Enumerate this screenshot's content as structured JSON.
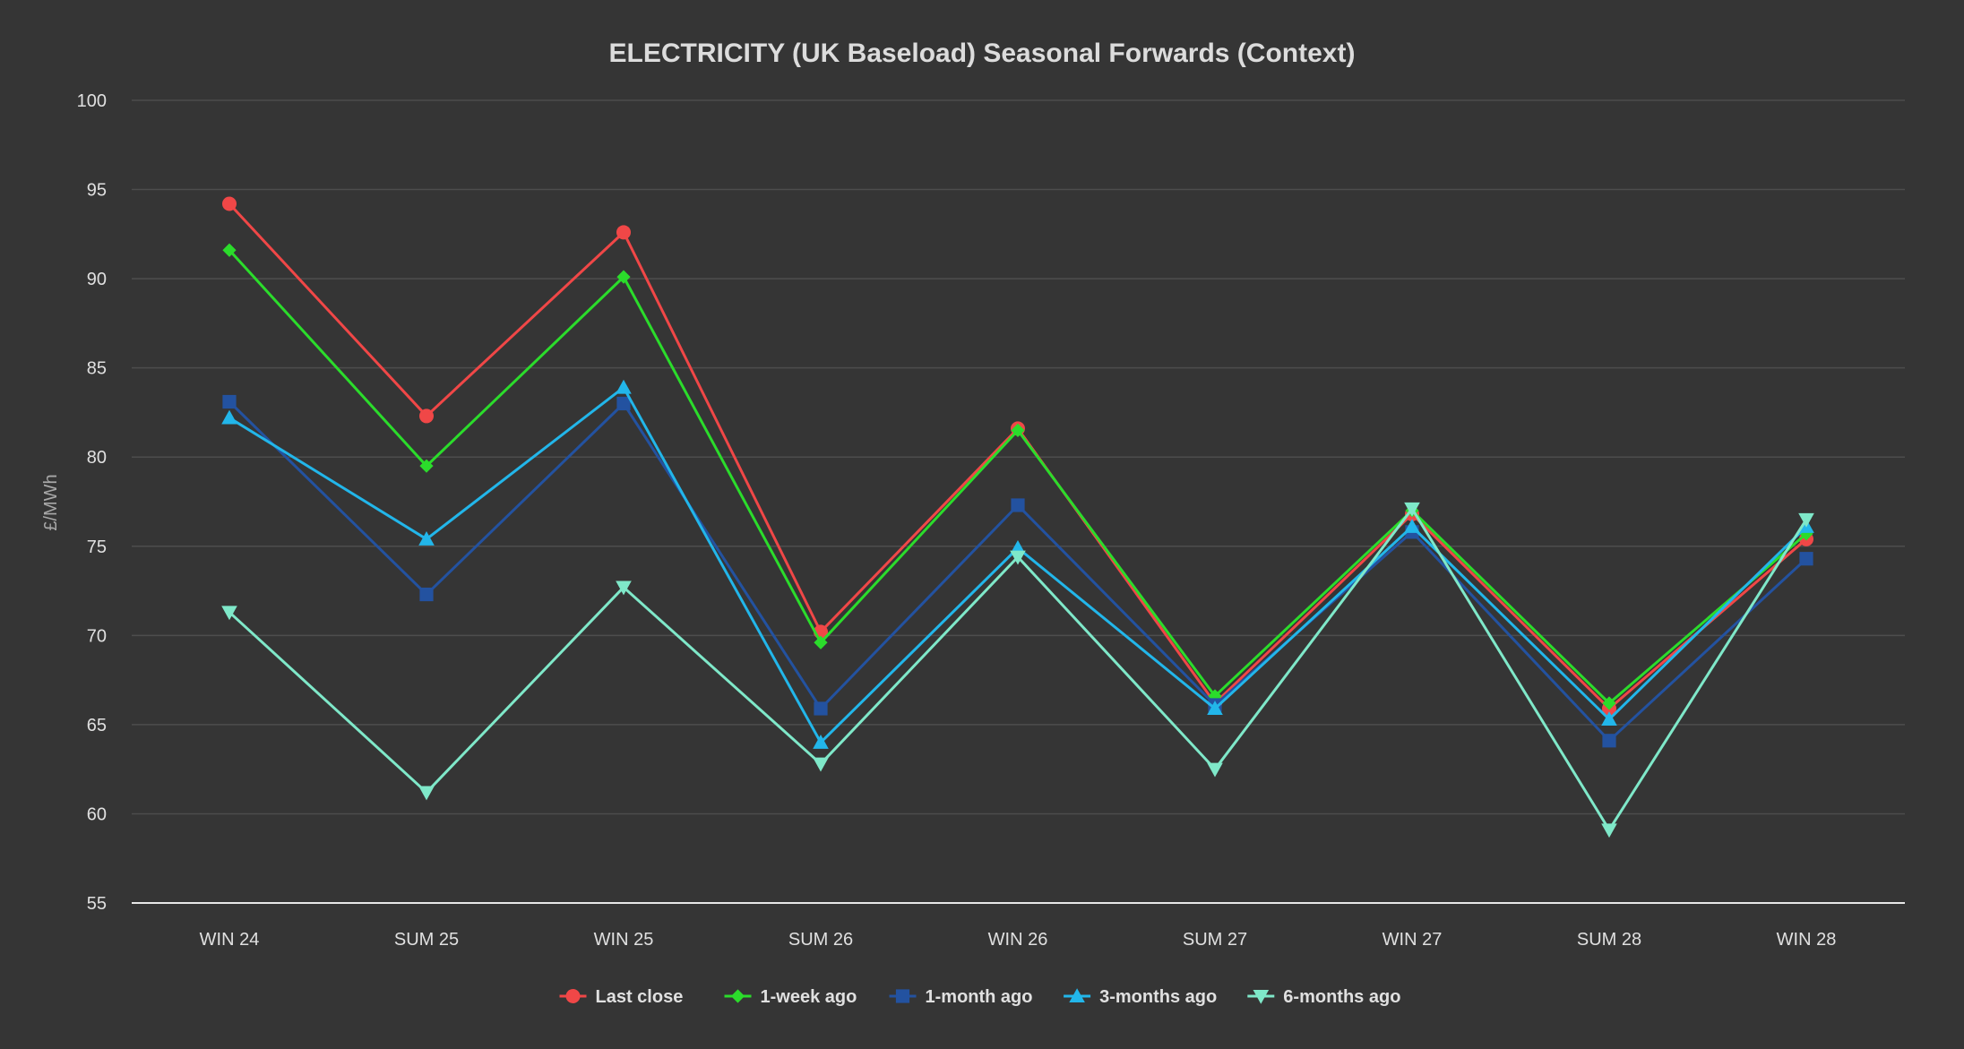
{
  "chart_data": {
    "type": "line",
    "title": "ELECTRICITY (UK Baseload) Seasonal Forwards (Context)",
    "xlabel": "",
    "ylabel": "£/MWh",
    "ylim": [
      55,
      100
    ],
    "y_ticks": [
      55,
      60,
      65,
      70,
      75,
      80,
      85,
      90,
      95,
      100
    ],
    "grid": true,
    "legend_position": "bottom-center",
    "categories": [
      "WIN 24",
      "SUM 25",
      "WIN 25",
      "SUM 26",
      "WIN 26",
      "SUM 27",
      "WIN 27",
      "SUM 28",
      "WIN 28"
    ],
    "series": [
      {
        "name": "Last close",
        "color": "#f04747",
        "marker": "circle",
        "values": [
          94.2,
          82.3,
          92.6,
          70.2,
          81.6,
          66.2,
          76.8,
          65.9,
          75.4
        ]
      },
      {
        "name": "1-week ago",
        "color": "#2bdc2b",
        "marker": "diamond",
        "values": [
          91.6,
          79.5,
          90.1,
          69.6,
          81.5,
          66.6,
          77.0,
          66.2,
          75.7
        ]
      },
      {
        "name": "1-month ago",
        "color": "#2352a0",
        "marker": "square",
        "values": [
          83.1,
          72.3,
          83.0,
          65.9,
          77.3,
          66.1,
          75.8,
          64.1,
          74.3
        ]
      },
      {
        "name": "3-months ago",
        "color": "#22b6ea",
        "marker": "triangle-up",
        "values": [
          82.2,
          75.4,
          83.9,
          64.0,
          74.9,
          65.9,
          76.1,
          65.3,
          76.1
        ]
      },
      {
        "name": "6-months ago",
        "color": "#7fe8c9",
        "marker": "triangle-down",
        "values": [
          71.3,
          61.2,
          72.7,
          62.8,
          74.4,
          62.5,
          77.1,
          59.1,
          76.5
        ]
      }
    ]
  },
  "colors": {
    "background": "#353535",
    "grid": "#4d4d4d",
    "axis": "#e8e8e8",
    "text": "#e0e0e0",
    "title": "#dcdcdc",
    "ylabel": "#a8a8a8"
  }
}
